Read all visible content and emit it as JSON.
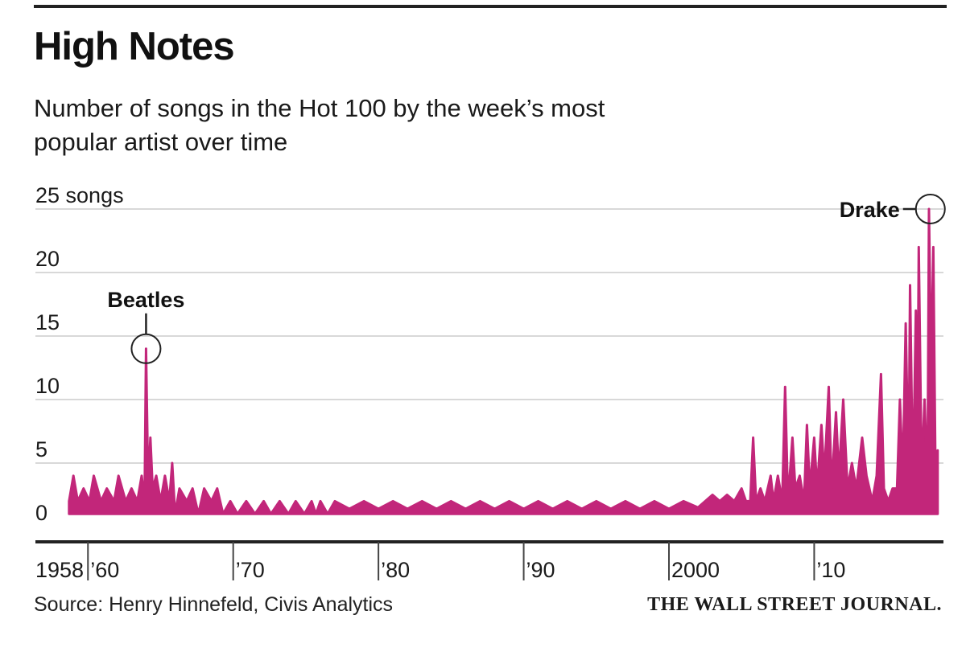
{
  "header": {
    "title": "High Notes",
    "subtitle": "Number of songs in the Hot 100 by the week’s most popular artist over time"
  },
  "footer": {
    "source": "Source: Henry Hinnefeld, Civis Analytics",
    "credit": "THE WALL STREET JOURNAL."
  },
  "colors": {
    "series": "#c2267a",
    "gridline": "#cccccc",
    "baseline": "#222222",
    "text": "#1a1a1a"
  },
  "chart_data": {
    "type": "area",
    "title": "High Notes",
    "subtitle": "Number of songs in the Hot 100 by the week’s most popular artist over time",
    "xlabel": "",
    "ylabel": "",
    "xlim": [
      1958.6,
      2018.9
    ],
    "ylim": [
      0,
      25
    ],
    "y_unit_label": "songs",
    "yticks": [
      {
        "value": 0,
        "label": "0"
      },
      {
        "value": 5,
        "label": "5"
      },
      {
        "value": 10,
        "label": "10"
      },
      {
        "value": 15,
        "label": "15"
      },
      {
        "value": 20,
        "label": "20"
      },
      {
        "value": 25,
        "label": "25 songs"
      }
    ],
    "xticks": [
      {
        "value": 1958.6,
        "label": "1958"
      },
      {
        "value": 1960,
        "label": "’60"
      },
      {
        "value": 1970,
        "label": "’70"
      },
      {
        "value": 1980,
        "label": "’80"
      },
      {
        "value": 1990,
        "label": "’90"
      },
      {
        "value": 2000,
        "label": "2000"
      },
      {
        "value": 2010,
        "label": "’10"
      }
    ],
    "grid": true,
    "series": [
      {
        "values": [
          [
            1958.7,
            2
          ],
          [
            1959.0,
            4
          ],
          [
            1959.3,
            2
          ],
          [
            1959.7,
            3
          ],
          [
            1960.1,
            2
          ],
          [
            1960.4,
            4
          ],
          [
            1960.9,
            2
          ],
          [
            1961.3,
            3
          ],
          [
            1961.8,
            2
          ],
          [
            1962.1,
            4
          ],
          [
            1962.6,
            2
          ],
          [
            1963.0,
            3
          ],
          [
            1963.4,
            2
          ],
          [
            1963.7,
            4
          ],
          [
            1963.9,
            2
          ],
          [
            1964.0,
            14
          ],
          [
            1964.15,
            3
          ],
          [
            1964.3,
            7
          ],
          [
            1964.45,
            3
          ],
          [
            1964.7,
            4
          ],
          [
            1965.0,
            2
          ],
          [
            1965.3,
            4
          ],
          [
            1965.6,
            2
          ],
          [
            1965.8,
            5
          ],
          [
            1966.0,
            1
          ],
          [
            1966.3,
            3
          ],
          [
            1966.8,
            2
          ],
          [
            1967.2,
            3
          ],
          [
            1967.6,
            1
          ],
          [
            1968.0,
            3
          ],
          [
            1968.5,
            2
          ],
          [
            1968.9,
            3
          ],
          [
            1969.3,
            1
          ],
          [
            1969.8,
            2
          ],
          [
            1970.3,
            1
          ],
          [
            1970.9,
            2
          ],
          [
            1971.5,
            1
          ],
          [
            1972.1,
            2
          ],
          [
            1972.6,
            1
          ],
          [
            1973.2,
            2
          ],
          [
            1973.8,
            1
          ],
          [
            1974.3,
            2
          ],
          [
            1974.9,
            1
          ],
          [
            1975.4,
            2
          ],
          [
            1975.7,
            1
          ],
          [
            1976.0,
            2
          ],
          [
            1976.5,
            1
          ],
          [
            1977.0,
            2
          ],
          [
            1978.0,
            1.4
          ],
          [
            1979.0,
            2
          ],
          [
            1980.0,
            1.4
          ],
          [
            1981.0,
            2
          ],
          [
            1982.0,
            1.4
          ],
          [
            1983.0,
            2
          ],
          [
            1984.0,
            1.4
          ],
          [
            1985.0,
            2
          ],
          [
            1986.0,
            1.4
          ],
          [
            1987.0,
            2
          ],
          [
            1988.0,
            1.4
          ],
          [
            1989.0,
            2
          ],
          [
            1990.0,
            1.4
          ],
          [
            1991.0,
            2
          ],
          [
            1992.0,
            1.4
          ],
          [
            1993.0,
            2
          ],
          [
            1994.0,
            1.4
          ],
          [
            1995.0,
            2
          ],
          [
            1996.0,
            1.4
          ],
          [
            1997.0,
            2
          ],
          [
            1998.0,
            1.4
          ],
          [
            1999.0,
            2
          ],
          [
            2000.0,
            1.4
          ],
          [
            2001.0,
            2
          ],
          [
            2002.0,
            1.5
          ],
          [
            2003.0,
            2.5
          ],
          [
            2003.5,
            2
          ],
          [
            2004.0,
            2.5
          ],
          [
            2004.5,
            2
          ],
          [
            2005.0,
            3
          ],
          [
            2005.3,
            2
          ],
          [
            2005.6,
            2
          ],
          [
            2005.8,
            7
          ],
          [
            2006.0,
            2
          ],
          [
            2006.3,
            3
          ],
          [
            2006.6,
            2
          ],
          [
            2007.0,
            4
          ],
          [
            2007.2,
            2
          ],
          [
            2007.5,
            4
          ],
          [
            2007.8,
            2
          ],
          [
            2008.0,
            11
          ],
          [
            2008.2,
            2
          ],
          [
            2008.5,
            7
          ],
          [
            2008.7,
            3
          ],
          [
            2009.0,
            4
          ],
          [
            2009.3,
            2
          ],
          [
            2009.5,
            8
          ],
          [
            2009.7,
            3
          ],
          [
            2010.0,
            7
          ],
          [
            2010.2,
            3
          ],
          [
            2010.5,
            8
          ],
          [
            2010.7,
            4
          ],
          [
            2011.0,
            11
          ],
          [
            2011.2,
            3
          ],
          [
            2011.5,
            9
          ],
          [
            2011.7,
            4
          ],
          [
            2012.0,
            10
          ],
          [
            2012.3,
            3
          ],
          [
            2012.6,
            5
          ],
          [
            2012.9,
            3
          ],
          [
            2013.3,
            7
          ],
          [
            2013.6,
            4
          ],
          [
            2014.0,
            2
          ],
          [
            2014.3,
            4
          ],
          [
            2014.6,
            12
          ],
          [
            2014.8,
            3
          ],
          [
            2015.1,
            2
          ],
          [
            2015.4,
            3
          ],
          [
            2015.7,
            3
          ],
          [
            2015.9,
            10
          ],
          [
            2016.1,
            4
          ],
          [
            2016.3,
            16
          ],
          [
            2016.5,
            4
          ],
          [
            2016.6,
            19
          ],
          [
            2016.8,
            3
          ],
          [
            2017.0,
            17
          ],
          [
            2017.1,
            4
          ],
          [
            2017.2,
            22
          ],
          [
            2017.4,
            4
          ],
          [
            2017.6,
            10
          ],
          [
            2017.8,
            3
          ],
          [
            2017.9,
            25
          ],
          [
            2018.05,
            12
          ],
          [
            2018.2,
            22
          ],
          [
            2018.35,
            4
          ],
          [
            2018.5,
            6
          ]
        ]
      }
    ],
    "annotations": [
      {
        "label": "Beatles",
        "x": 1964.0,
        "y": 14
      },
      {
        "label": "Drake",
        "x": 2018.0,
        "y": 25
      }
    ]
  }
}
